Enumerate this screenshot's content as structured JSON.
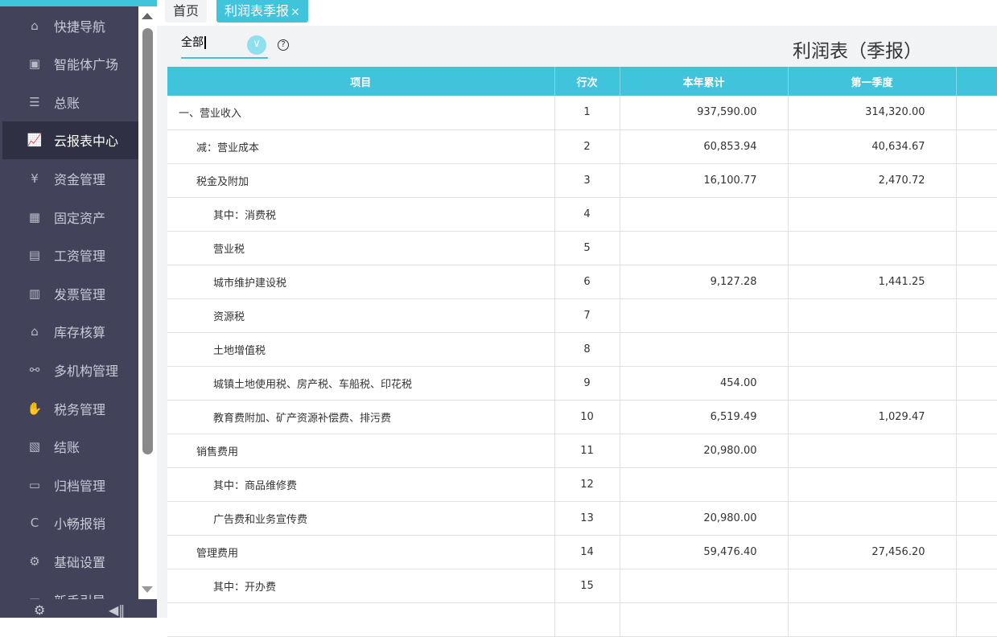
{
  "sidebar": {
    "items": [
      {
        "label": "快捷导航",
        "icon": "home-icon",
        "glyph": "⌂"
      },
      {
        "label": "智能体广场",
        "icon": "book-icon",
        "glyph": "▣"
      },
      {
        "label": "总账",
        "icon": "ledger-icon",
        "glyph": "☰"
      },
      {
        "label": "云报表中心",
        "icon": "chart-icon",
        "glyph": "📈",
        "active": true
      },
      {
        "label": "资金管理",
        "icon": "money-bag-icon",
        "glyph": "¥"
      },
      {
        "label": "固定资产",
        "icon": "building-icon",
        "glyph": "▦"
      },
      {
        "label": "工资管理",
        "icon": "salary-icon",
        "glyph": "▤"
      },
      {
        "label": "发票管理",
        "icon": "invoice-icon",
        "glyph": "▥"
      },
      {
        "label": "库存核算",
        "icon": "warehouse-icon",
        "glyph": "⌂"
      },
      {
        "label": "多机构管理",
        "icon": "org-icon",
        "glyph": "⚯"
      },
      {
        "label": "税务管理",
        "icon": "tax-icon",
        "glyph": "✋"
      },
      {
        "label": "结账",
        "icon": "checkout-icon",
        "glyph": "▧"
      },
      {
        "label": "归档管理",
        "icon": "archive-icon",
        "glyph": "▭"
      },
      {
        "label": "小畅报销",
        "icon": "reimburse-icon",
        "glyph": "C"
      },
      {
        "label": "基础设置",
        "icon": "gear-icon",
        "glyph": "⚙"
      },
      {
        "label": "新手引导",
        "icon": "guide-icon",
        "glyph": "▭"
      }
    ]
  },
  "tabs": [
    {
      "label": "首页"
    },
    {
      "label": "利润表季报",
      "close": "×"
    }
  ],
  "toolbar": {
    "filter_value": "全部",
    "title": "利润表（季报）"
  },
  "colors": {
    "accent": "#40c4dc",
    "sidebar": "#42435a"
  },
  "table": {
    "headers": [
      "项目",
      "行次",
      "本年累计",
      "第一季度",
      ""
    ],
    "rows": [
      {
        "item": "一、营业收入",
        "indent": 0,
        "line": "1",
        "ytd": "937,590.00",
        "q1": "314,320.00"
      },
      {
        "item": "减：营业成本",
        "indent": 1,
        "line": "2",
        "ytd": "60,853.94",
        "q1": "40,634.67"
      },
      {
        "item": "税金及附加",
        "indent": 1,
        "line": "3",
        "ytd": "16,100.77",
        "q1": "2,470.72"
      },
      {
        "item": "其中：消费税",
        "indent": 2,
        "line": "4",
        "ytd": "",
        "q1": ""
      },
      {
        "item": "营业税",
        "indent": 2,
        "line": "5",
        "ytd": "",
        "q1": ""
      },
      {
        "item": "城市维护建设税",
        "indent": 2,
        "line": "6",
        "ytd": "9,127.28",
        "q1": "1,441.25"
      },
      {
        "item": "资源税",
        "indent": 2,
        "line": "7",
        "ytd": "",
        "q1": ""
      },
      {
        "item": "土地增值税",
        "indent": 2,
        "line": "8",
        "ytd": "",
        "q1": ""
      },
      {
        "item": "城镇土地使用税、房产税、车船税、印花税",
        "indent": 2,
        "line": "9",
        "ytd": "454.00",
        "q1": ""
      },
      {
        "item": "教育费附加、矿产资源补偿费、排污费",
        "indent": 2,
        "line": "10",
        "ytd": "6,519.49",
        "q1": "1,029.47"
      },
      {
        "item": "销售费用",
        "indent": 1,
        "line": "11",
        "ytd": "20,980.00",
        "q1": ""
      },
      {
        "item": "其中：商品维修费",
        "indent": 2,
        "line": "12",
        "ytd": "",
        "q1": ""
      },
      {
        "item": "广告费和业务宣传费",
        "indent": 2,
        "line": "13",
        "ytd": "20,980.00",
        "q1": ""
      },
      {
        "item": "管理费用",
        "indent": 1,
        "line": "14",
        "ytd": "59,476.40",
        "q1": "27,456.20"
      },
      {
        "item": "其中：开办费",
        "indent": 2,
        "line": "15",
        "ytd": "",
        "q1": ""
      },
      {
        "item": "",
        "indent": 2,
        "line": "",
        "ytd": "",
        "q1": ""
      }
    ]
  }
}
